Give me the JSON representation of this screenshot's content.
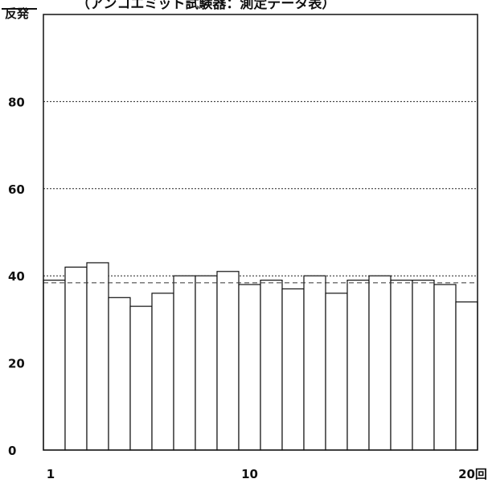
{
  "chart_data": {
    "type": "bar",
    "title": "（アンコエミット試験器：測定データ表）",
    "ylabel": "反発",
    "xlabel_unit": "回",
    "ylim": [
      0,
      100
    ],
    "yticks": [
      0,
      20,
      40,
      60,
      80
    ],
    "xticks": [
      {
        "x": 1,
        "label": "1"
      },
      {
        "x": 10,
        "label": "10"
      },
      {
        "x": 20,
        "label": "20回"
      }
    ],
    "grid": true,
    "grid_style": "dotted",
    "reference_line": {
      "value": 38.4,
      "style": "dashed"
    },
    "x": [
      1,
      2,
      3,
      4,
      5,
      6,
      7,
      8,
      9,
      10,
      11,
      12,
      13,
      14,
      15,
      16,
      17,
      18,
      19,
      20
    ],
    "values": [
      39,
      42,
      43,
      35,
      33,
      36,
      40,
      40,
      41,
      38,
      39,
      37,
      40,
      36,
      39,
      40,
      39,
      39,
      38,
      34
    ],
    "bar_color": "#ffffff",
    "edge_color": "#111111"
  }
}
